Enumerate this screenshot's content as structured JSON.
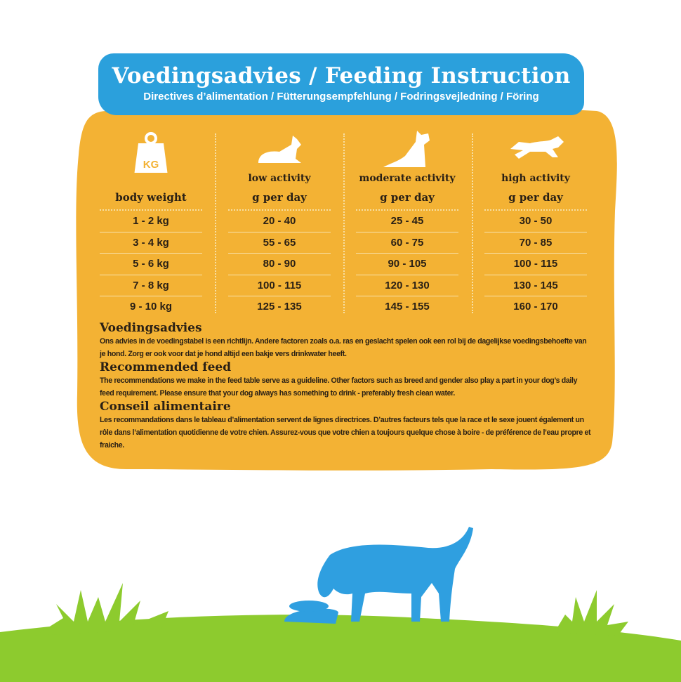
{
  "header": {
    "title": "Voedingsadvies / Feeding Instruction",
    "subtitle": "Directives d’alimentation / Fütterungsempfehlung / Fodringsvejledning / Föring"
  },
  "colors": {
    "banner": "#2ba0dc",
    "card": "#f3b234",
    "grass": "#8dcb2e",
    "dog": "#2f9fe0"
  },
  "table": {
    "weight_icon_label": "KG",
    "columns": [
      {
        "header": "",
        "sub": "body weight",
        "icon": "kg-weight-icon",
        "values": [
          "1 - 2 kg",
          "3 - 4 kg",
          "5 - 6 kg",
          "7 - 8 kg",
          "9 - 10 kg"
        ]
      },
      {
        "header": "low activity",
        "sub": "g per day",
        "icon": "lying-dog-icon",
        "values": [
          "20 - 40",
          "55 - 65",
          "80 - 90",
          "100 - 115",
          "125 - 135"
        ]
      },
      {
        "header": "moderate activity",
        "sub": "g per day",
        "icon": "sitting-dog-icon",
        "values": [
          "25 - 45",
          "60 - 75",
          "90 - 105",
          "120 - 130",
          "145 - 155"
        ]
      },
      {
        "header": "high activity",
        "sub": "g per day",
        "icon": "running-dog-icon",
        "values": [
          "30 - 50",
          "70 - 85",
          "100 - 115",
          "130 - 145",
          "160 - 170"
        ]
      }
    ]
  },
  "sections": [
    {
      "heading": "Voedingsadvies",
      "body": "Ons advies in de voedingstabel is een richtlijn. Andere factoren zoals o.a. ras en geslacht spelen ook een rol bij de dagelijkse voedingsbehoefte van je hond. Zorg er ook voor dat je hond altijd een bakje vers drinkwater heeft."
    },
    {
      "heading": "Recommended feed",
      "body": "The recommendations we make in the feed table serve as a guideline. Other factors such as breed and gender also play a part in your dog’s daily feed requirement. Please ensure that your dog always has something to drink - preferably fresh clean water."
    },
    {
      "heading": "Conseil alimentaire",
      "body": "Les recommandations dans le tableau d’alimentation servent de lignes directrices. D’autres facteurs tels que la race et le sexe jouent également un rôle dans l’alimentation quotidienne de votre chien. Assurez-vous que votre chien a toujours quelque chose à boire - de préférence de l’eau propre et fraiche."
    }
  ]
}
